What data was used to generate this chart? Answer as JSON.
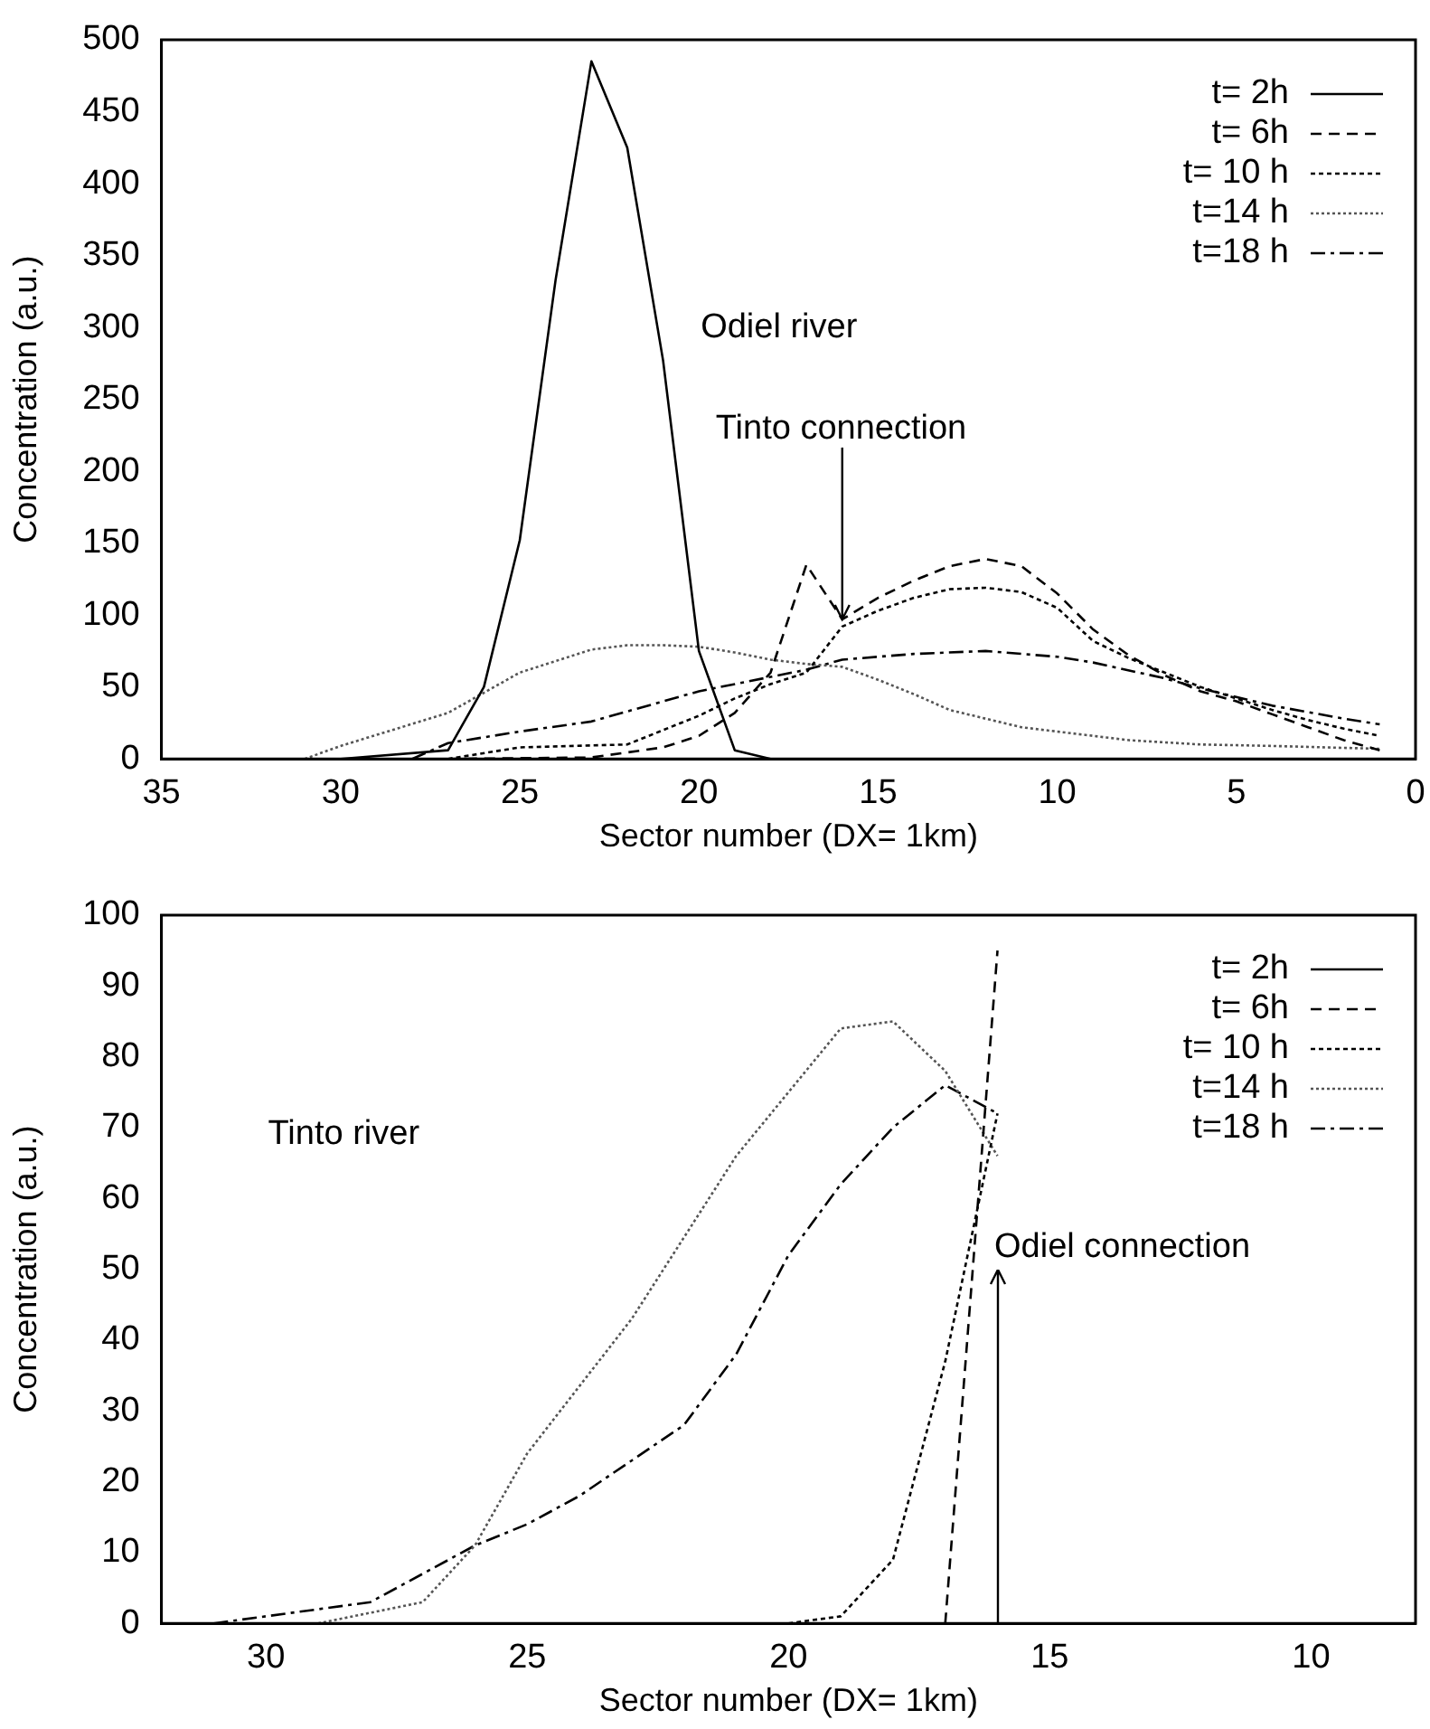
{
  "chart_data": [
    {
      "type": "line",
      "xlabel": "Sector number (DX= 1km)",
      "ylabel": "Concentration (a.u.)",
      "xlim": [
        35,
        0
      ],
      "xticks": [
        35,
        30,
        25,
        20,
        15,
        10,
        5,
        0
      ],
      "ylim": [
        0,
        500
      ],
      "yticks": [
        0,
        50,
        100,
        150,
        200,
        250,
        300,
        350,
        400,
        450,
        500
      ],
      "grid": false,
      "legend": "top right",
      "annotations": [
        "Odiel river",
        {
          "text": "Tinto connection",
          "x": 16,
          "y": 97
        }
      ],
      "series": [
        {
          "name": "t= 2h",
          "color": "#000000",
          "line_style": "solid",
          "x": [
            30,
            27,
            26,
            25,
            24,
            23,
            22,
            21,
            20,
            19,
            18,
            1
          ],
          "values": [
            0,
            6,
            50,
            152,
            333,
            485,
            425,
            277,
            75,
            6,
            0,
            0
          ]
        },
        {
          "name": "t= 6h",
          "color": "#000000",
          "line_style": "dashed",
          "x": [
            27,
            23,
            21,
            20,
            19,
            18,
            17,
            16,
            15,
            14,
            13,
            12,
            11,
            10,
            9,
            8,
            7,
            6,
            5,
            4,
            3,
            2,
            1
          ],
          "values": [
            0,
            1,
            8,
            16,
            32,
            60,
            135,
            97,
            112,
            124,
            134,
            139,
            134,
            115,
            90,
            72,
            58,
            47,
            40,
            31,
            22,
            13,
            6
          ]
        },
        {
          "name": "t= 10 h",
          "color": "#000000",
          "line_style": "dotted",
          "x": [
            27,
            25,
            22,
            20,
            19,
            18,
            17,
            16,
            15,
            14,
            13,
            12,
            11,
            10,
            9,
            8,
            7,
            6,
            5,
            4,
            3,
            2,
            1
          ],
          "values": [
            0,
            8,
            10,
            30,
            42,
            52,
            60,
            92,
            103,
            112,
            118,
            119,
            116,
            105,
            82,
            70,
            60,
            50,
            42,
            34,
            27,
            21,
            16
          ]
        },
        {
          "name": "t=14 h",
          "color": "#555555",
          "line_style": "dotted",
          "x": [
            31,
            30,
            27,
            25,
            23,
            22,
            21,
            20,
            19,
            18,
            17,
            16,
            15,
            14,
            13,
            12,
            11,
            10,
            8,
            6,
            4,
            1
          ],
          "values": [
            0,
            9,
            32,
            60,
            76,
            79,
            79,
            78,
            74,
            69,
            66,
            64,
            55,
            45,
            34,
            28,
            22,
            19,
            13,
            10,
            9,
            7
          ]
        },
        {
          "name": "t=18 h",
          "color": "#000000",
          "line_style": "dashed",
          "x": [
            28,
            27,
            25,
            23,
            20,
            18,
            17,
            16,
            14,
            12,
            10,
            9,
            7,
            6,
            4,
            2,
            1
          ],
          "values": [
            0,
            11,
            19,
            26,
            47,
            57,
            62,
            69,
            73,
            75,
            71,
            67,
            56,
            49,
            37,
            28,
            24
          ]
        }
      ]
    },
    {
      "type": "line",
      "xlabel": "Sector number (DX= 1km)",
      "ylabel": "Concentration (a.u.)",
      "xlim": [
        32,
        8
      ],
      "xticks": [
        30,
        25,
        20,
        15,
        10
      ],
      "ylim": [
        0,
        100
      ],
      "yticks": [
        0,
        10,
        20,
        30,
        40,
        50,
        60,
        70,
        80,
        90,
        100
      ],
      "grid": false,
      "legend": "top right",
      "annotations": [
        "Tinto river",
        "Odiel connection"
      ],
      "series": [
        {
          "name": "t= 2h",
          "color": "#000000",
          "line_style": "solid"
        },
        {
          "name": "t= 6h",
          "color": "#000000",
          "line_style": "dashed",
          "x": [
            17,
            16
          ],
          "values": [
            0,
            95
          ]
        },
        {
          "name": "t= 10 h",
          "color": "#000000",
          "line_style": "dotted",
          "x": [
            20,
            19,
            18,
            17,
            16
          ],
          "values": [
            0,
            1,
            9,
            37,
            72
          ]
        },
        {
          "name": "t=14 h",
          "color": "#555555",
          "line_style": "dotted",
          "x": [
            29,
            27,
            26,
            25,
            23,
            21,
            19,
            18,
            17,
            16
          ],
          "values": [
            0,
            3,
            11,
            24,
            43,
            66,
            84,
            85,
            78,
            66
          ]
        },
        {
          "name": "t=18 h",
          "color": "#000000",
          "line_style": "dashed",
          "x": [
            31,
            30,
            28,
            26,
            25,
            24,
            22,
            21,
            20,
            19,
            18,
            17,
            16
          ],
          "values": [
            0,
            1,
            3,
            11,
            14,
            18,
            28,
            38,
            52,
            62,
            70,
            76,
            72
          ]
        }
      ]
    }
  ]
}
